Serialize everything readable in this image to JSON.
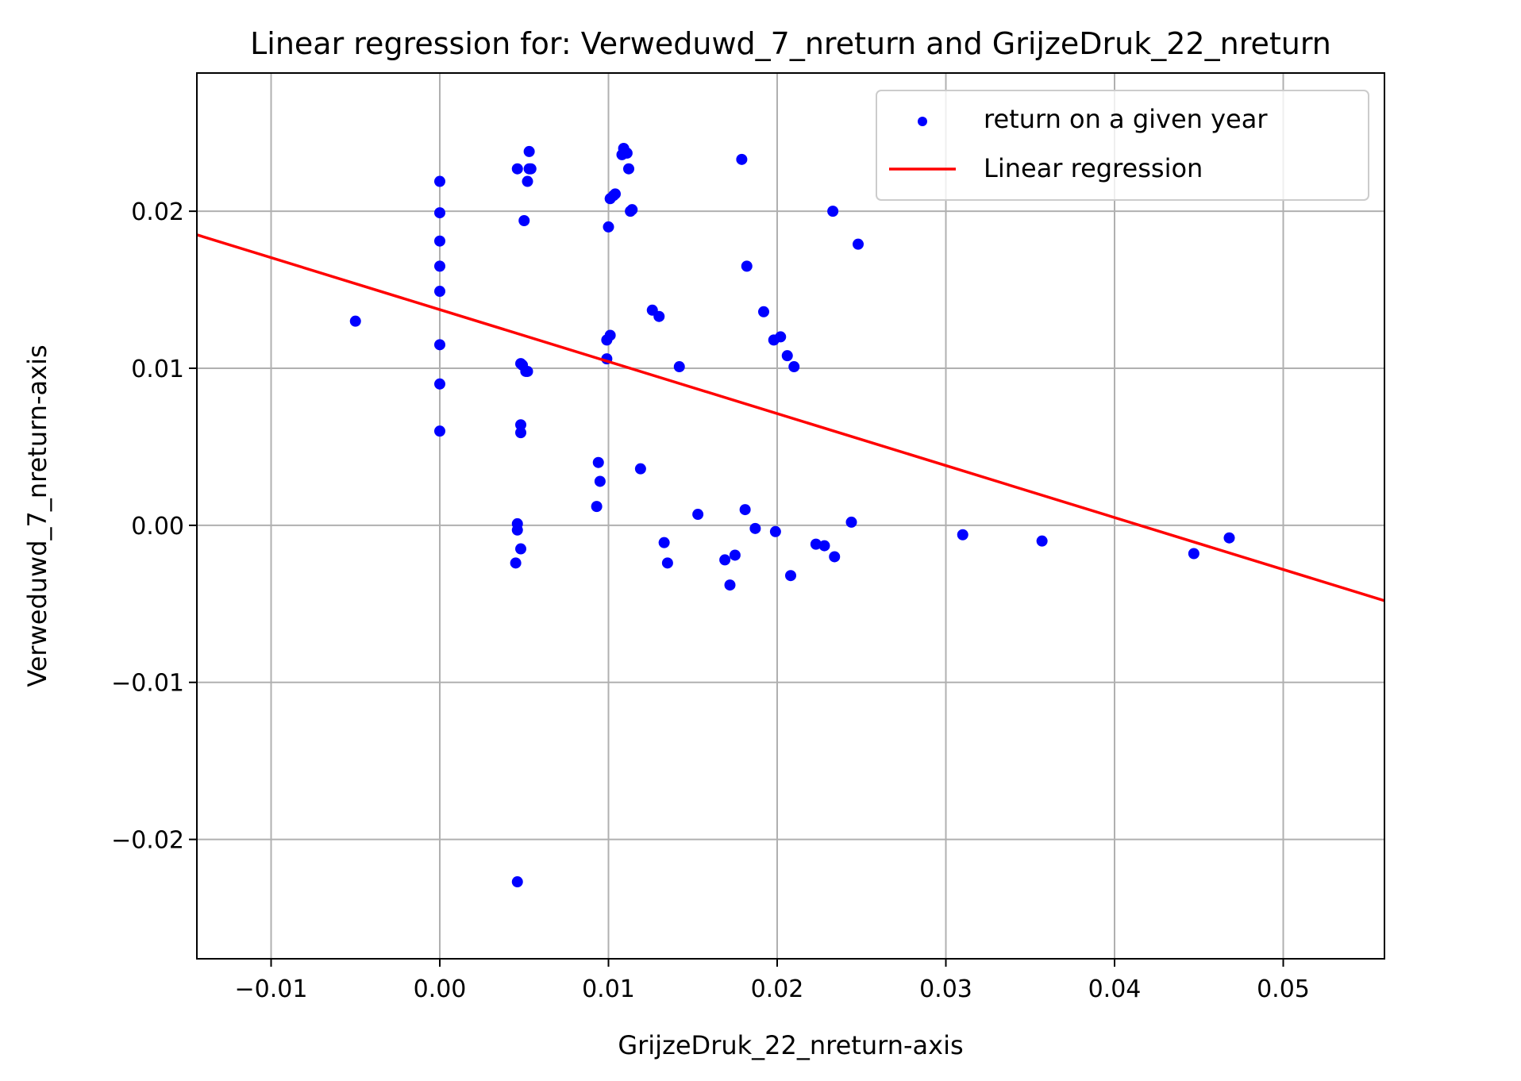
{
  "chart_data": {
    "type": "scatter",
    "title": "Linear regression for: Verweduwd_7_nreturn and GrijzeDruk_22_nreturn",
    "xlabel": "GrijzeDruk_22_nreturn-axis",
    "ylabel": "Verweduwd_7_nreturn-axis",
    "xlim": [
      -0.0144,
      0.056
    ],
    "ylim": [
      -0.0276,
      0.0288
    ],
    "xticks": [
      -0.01,
      0.0,
      0.01,
      0.02,
      0.03,
      0.04,
      0.05
    ],
    "xtick_labels": [
      "−0.01",
      "0.00",
      "0.01",
      "0.02",
      "0.03",
      "0.04",
      "0.05"
    ],
    "yticks": [
      -0.02,
      -0.01,
      0.0,
      0.01,
      0.02
    ],
    "ytick_labels": [
      "−0.02",
      "−0.01",
      "0.00",
      "0.01",
      "0.02"
    ],
    "grid": true,
    "legend_position": "top-right",
    "series": [
      {
        "name": "return on a given year",
        "type": "scatter",
        "color": "#0000ff",
        "x": [
          -0.005,
          0.0,
          0.0,
          0.0,
          0.0,
          0.0,
          0.0,
          0.0,
          0.0,
          0.0046,
          0.0053,
          0.0053,
          0.0054,
          0.0052,
          0.005,
          0.0048,
          0.0049,
          0.0051,
          0.0052,
          0.0048,
          0.0048,
          0.0046,
          0.0046,
          0.0048,
          0.0045,
          0.0046,
          0.0109,
          0.0108,
          0.0111,
          0.0112,
          0.0104,
          0.0103,
          0.0101,
          0.0113,
          0.0114,
          0.01,
          0.0101,
          0.0099,
          0.0099,
          0.0126,
          0.013,
          0.0142,
          0.0179,
          0.0182,
          0.0233,
          0.0248,
          0.0192,
          0.0198,
          0.0202,
          0.0206,
          0.021,
          0.0094,
          0.0095,
          0.0093,
          0.0119,
          0.0153,
          0.0133,
          0.0135,
          0.0181,
          0.0187,
          0.0199,
          0.0169,
          0.0175,
          0.0172,
          0.0208,
          0.0223,
          0.0228,
          0.0234,
          0.0244,
          0.031,
          0.0357,
          0.0447,
          0.0468
        ],
        "y": [
          0.013,
          0.0219,
          0.0199,
          0.0181,
          0.0165,
          0.0149,
          0.0115,
          0.009,
          0.006,
          0.0227,
          0.0238,
          0.0227,
          0.0227,
          0.0219,
          0.0194,
          0.0103,
          0.0102,
          0.0098,
          0.0098,
          0.0064,
          0.0059,
          0.0001,
          -0.0003,
          -0.0015,
          -0.0024,
          -0.0227,
          0.024,
          0.0236,
          0.0237,
          0.0227,
          0.0211,
          0.021,
          0.0208,
          0.02,
          0.0201,
          0.019,
          0.0121,
          0.0118,
          0.0106,
          0.0137,
          0.0133,
          0.0101,
          0.0233,
          0.0165,
          0.02,
          0.0179,
          0.0136,
          0.0118,
          0.012,
          0.0108,
          0.0101,
          0.004,
          0.0028,
          0.0012,
          0.0036,
          0.0007,
          -0.0011,
          -0.0024,
          0.001,
          -0.0002,
          -0.0004,
          -0.0022,
          -0.0019,
          -0.0038,
          -0.0032,
          -0.0012,
          -0.0013,
          -0.002,
          0.0002,
          -0.0006,
          -0.001,
          -0.0018,
          -0.0008
        ]
      },
      {
        "name": "Linear regression",
        "type": "line",
        "color": "#ff0000",
        "x": [
          -0.0144,
          0.056
        ],
        "y": [
          0.0185,
          -0.0048
        ]
      }
    ]
  }
}
